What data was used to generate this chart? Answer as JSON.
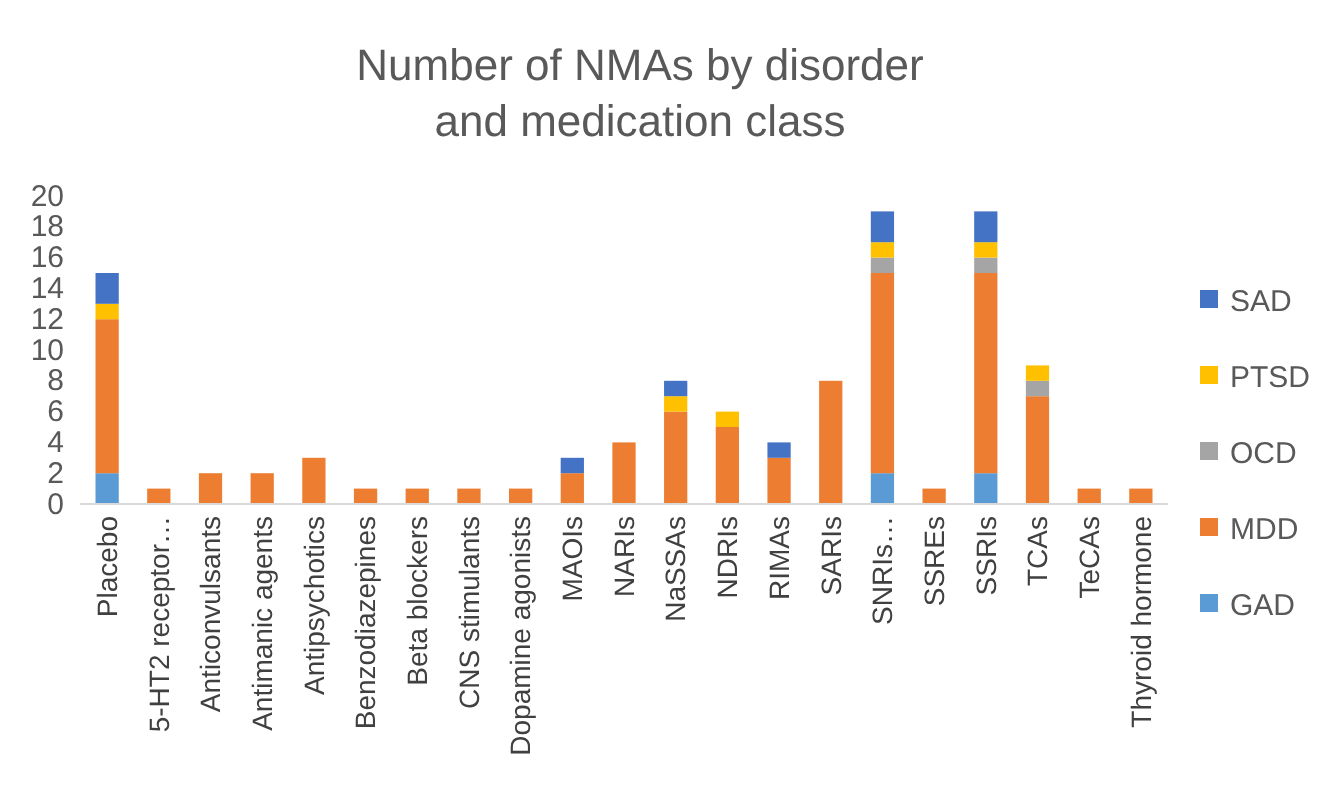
{
  "chart_data": {
    "type": "bar",
    "title": "Number of NMAs by disorder and medication class",
    "stacked": true,
    "legend": "right",
    "grid": false,
    "categories": [
      "Placebo",
      "5-HT2 receptor…",
      "Anticonvulsants",
      "Antimanic agents",
      "Antipsychotics",
      "Benzodiazepines",
      "Beta blockers",
      "CNS stimulants",
      "Dopamine agonists",
      "MAOIs",
      "NARIs",
      "NaSSAs",
      "NDRIs",
      "RIMAs",
      "SARIs",
      "SNRIs…",
      "SSREs",
      "SSRIs",
      "TCAs",
      "TeCAs",
      "Thyroid hormone"
    ],
    "ylim": [
      0,
      20
    ],
    "yticks": [
      0,
      2,
      4,
      6,
      8,
      10,
      12,
      14,
      16,
      18,
      20
    ],
    "series": [
      {
        "name": "GAD",
        "color": "#5b9bd5",
        "values": [
          2,
          0,
          0,
          0,
          0,
          0,
          0,
          0,
          0,
          0,
          0,
          0,
          0,
          0,
          0,
          2,
          0,
          2,
          0,
          0,
          0
        ]
      },
      {
        "name": "MDD",
        "color": "#ed7d31",
        "values": [
          10,
          1,
          2,
          2,
          3,
          1,
          1,
          1,
          1,
          2,
          4,
          6,
          5,
          3,
          8,
          13,
          1,
          13,
          7,
          1,
          1
        ]
      },
      {
        "name": "OCD",
        "color": "#a5a5a5",
        "values": [
          0,
          0,
          0,
          0,
          0,
          0,
          0,
          0,
          0,
          0,
          0,
          0,
          0,
          0,
          0,
          1,
          0,
          1,
          1,
          0,
          0
        ]
      },
      {
        "name": "PTSD",
        "color": "#ffc000",
        "values": [
          1,
          0,
          0,
          0,
          0,
          0,
          0,
          0,
          0,
          0,
          0,
          1,
          1,
          0,
          0,
          1,
          0,
          1,
          1,
          0,
          0
        ]
      },
      {
        "name": "SAD",
        "color": "#4472c4",
        "values": [
          2,
          0,
          0,
          0,
          0,
          0,
          0,
          0,
          0,
          1,
          0,
          1,
          0,
          1,
          0,
          2,
          0,
          2,
          0,
          0,
          0
        ]
      }
    ]
  }
}
